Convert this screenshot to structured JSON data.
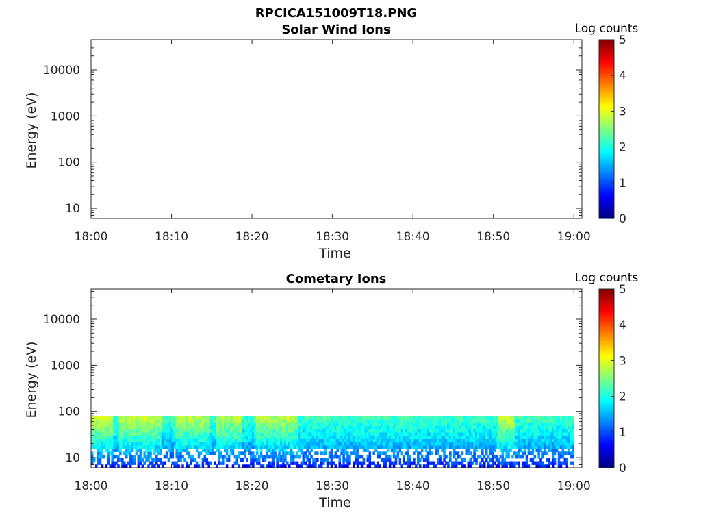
{
  "figure": {
    "filename_title": "RPCICA151009T18.PNG"
  },
  "chart_data": [
    {
      "type": "heatmap",
      "title": "Solar Wind Ions",
      "xlabel": "Time",
      "ylabel": "Energy (eV)",
      "y_scale": "log",
      "ylim": [
        6,
        45000
      ],
      "xlim": [
        "18:00",
        "19:01"
      ],
      "x_ticks": [
        "18:00",
        "18:10",
        "18:20",
        "18:30",
        "18:40",
        "18:50",
        "19:00"
      ],
      "y_ticks": [
        "10",
        "100",
        "1000",
        "10000"
      ],
      "colorbar": {
        "label": "Log counts",
        "range": [
          0,
          5
        ],
        "ticks": [
          "0",
          "1",
          "2",
          "3",
          "4",
          "5"
        ],
        "colormap": "jet"
      },
      "data_description": "empty",
      "band": null
    },
    {
      "type": "heatmap",
      "title": "Cometary Ions",
      "xlabel": "Time",
      "ylabel": "Energy (eV)",
      "y_scale": "log",
      "ylim": [
        6,
        45000
      ],
      "xlim": [
        "18:00",
        "19:01"
      ],
      "x_ticks": [
        "18:00",
        "18:10",
        "18:20",
        "18:30",
        "18:40",
        "18:50",
        "19:00"
      ],
      "y_ticks": [
        "10",
        "100",
        "1000",
        "10000"
      ],
      "colorbar": {
        "label": "Log counts",
        "range": [
          0,
          5
        ],
        "ticks": [
          "0",
          "1",
          "2",
          "3",
          "4",
          "5"
        ],
        "colormap": "jet"
      },
      "band": {
        "energy_min_eV": 6,
        "energy_max_eV": 80,
        "time_start": "18:00",
        "time_end": "19:00",
        "typical_log_counts_high_energy": 2.2,
        "typical_log_counts_low_energy": 0.5,
        "peak_log_counts": 3.0,
        "bright_intervals": [
          {
            "start": "18:00",
            "end": "18:02",
            "peak": 3.0
          },
          {
            "start": "18:04",
            "end": "18:08",
            "peak": 2.9
          },
          {
            "start": "18:11",
            "end": "18:14",
            "peak": 2.8
          },
          {
            "start": "18:16",
            "end": "18:18",
            "peak": 2.8
          },
          {
            "start": "18:21",
            "end": "18:25",
            "peak": 2.8
          },
          {
            "start": "18:51",
            "end": "18:52",
            "peak": 2.9
          }
        ]
      }
    }
  ]
}
